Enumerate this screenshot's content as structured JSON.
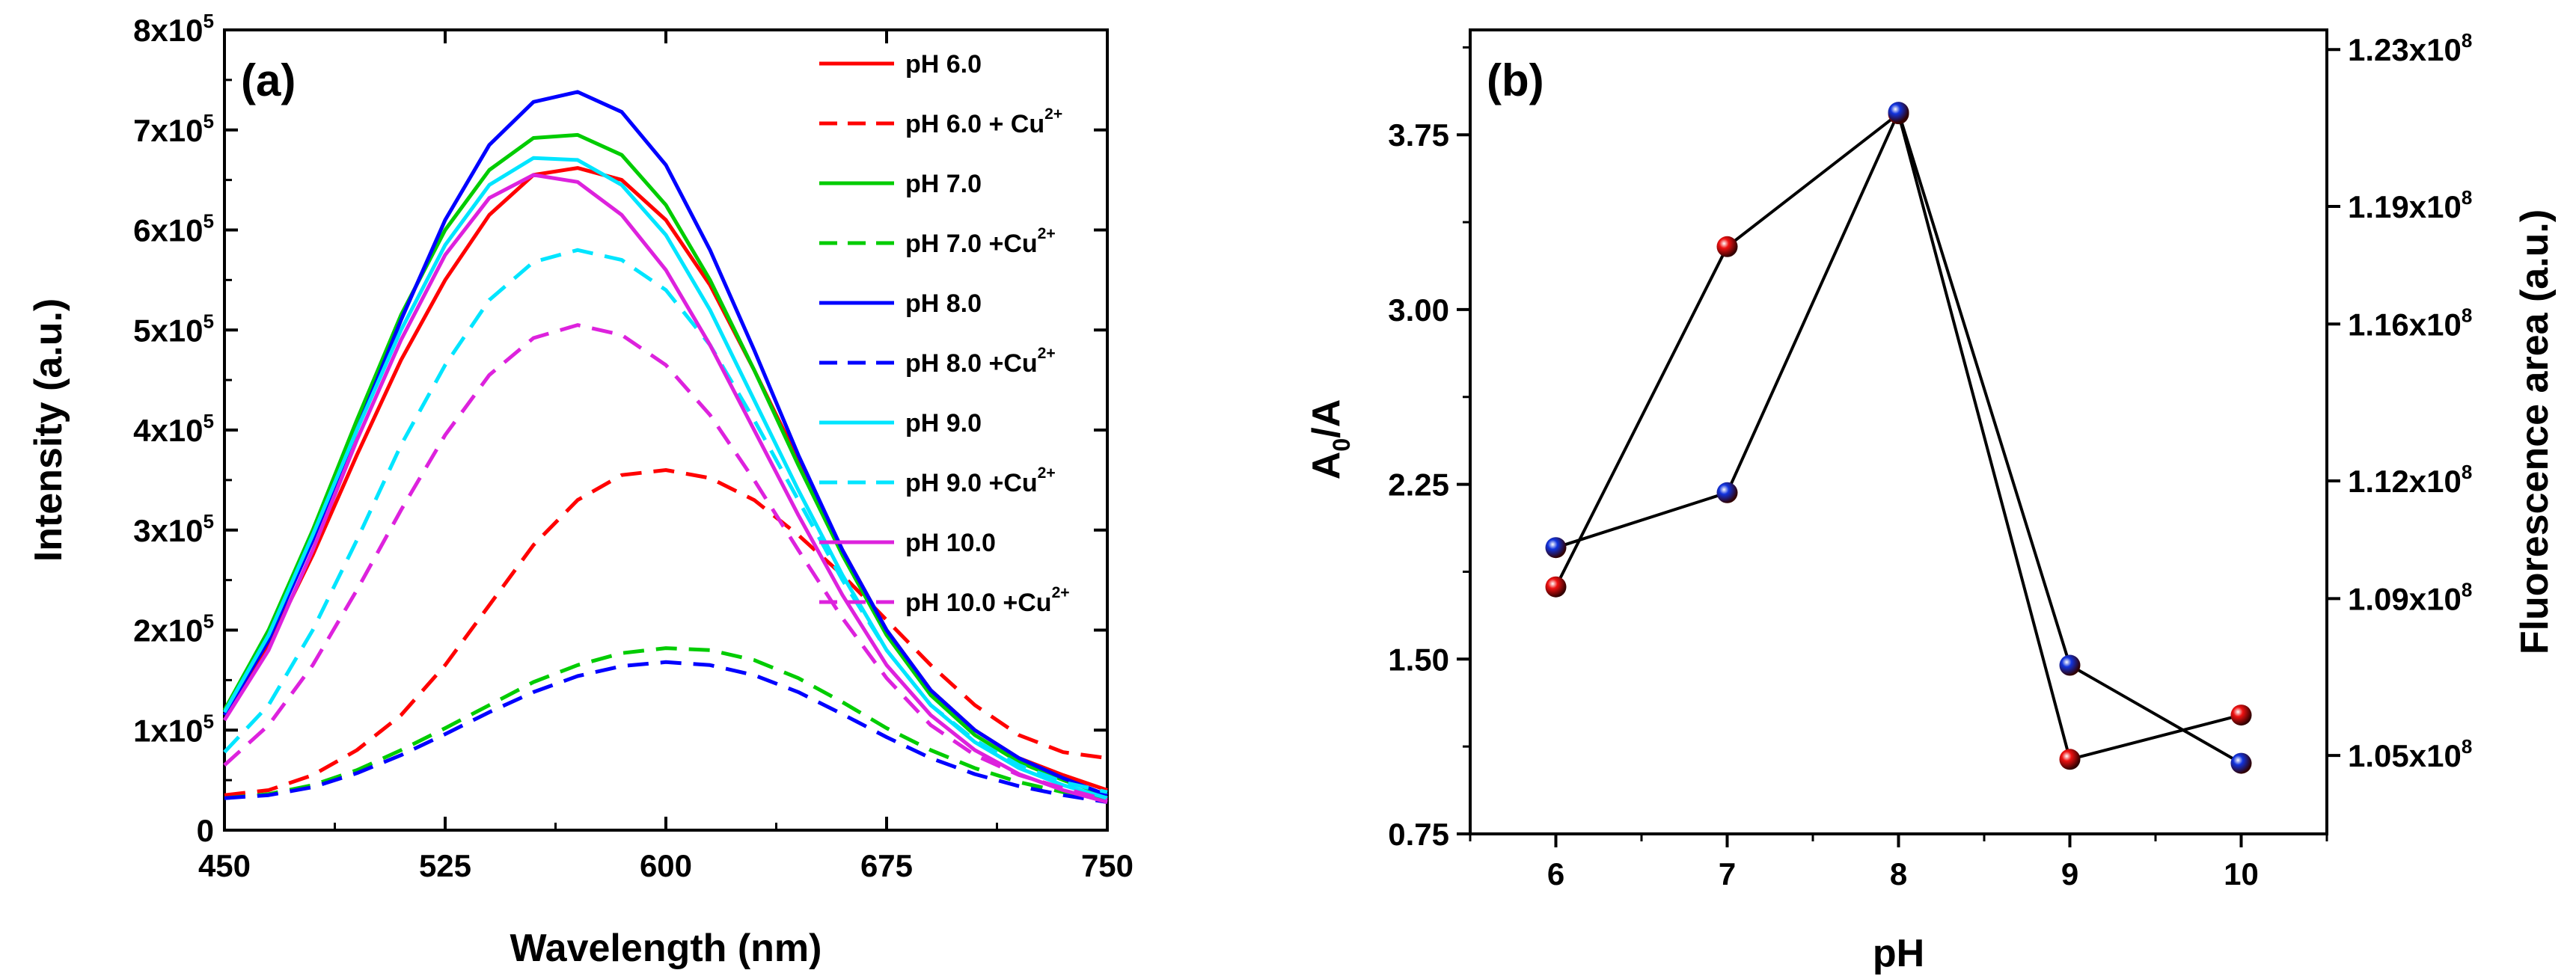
{
  "chart_data": [
    {
      "type": "line",
      "panel_label": "(a)",
      "xlabel": "Wavelength   (nm)",
      "ylabel": "Intensity   (a.u.)",
      "xlim": [
        450,
        750
      ],
      "ylim": [
        0,
        800000
      ],
      "x_ticks": [
        "450",
        "525",
        "600",
        "675",
        "750"
      ],
      "y_ticks": [
        {
          "value": 0,
          "base": "0",
          "exp": ""
        },
        {
          "value": 100000,
          "base": "1x10",
          "exp": "5"
        },
        {
          "value": 200000,
          "base": "2x10",
          "exp": "5"
        },
        {
          "value": 300000,
          "base": "3x10",
          "exp": "5"
        },
        {
          "value": 400000,
          "base": "4x10",
          "exp": "5"
        },
        {
          "value": 500000,
          "base": "5x10",
          "exp": "5"
        },
        {
          "value": 600000,
          "base": "6x10",
          "exp": "5"
        },
        {
          "value": 700000,
          "base": "7x10",
          "exp": "5"
        },
        {
          "value": 800000,
          "base": "8x10",
          "exp": "5"
        }
      ],
      "x": [
        450,
        465,
        480,
        495,
        510,
        525,
        540,
        555,
        570,
        585,
        600,
        615,
        630,
        645,
        660,
        675,
        690,
        705,
        720,
        735,
        750
      ],
      "legend_position": "top-right",
      "series": [
        {
          "name": "pH 6.0",
          "sup": "",
          "color": "#ff0000",
          "style": "solid",
          "values": [
            115000,
            185000,
            275000,
            375000,
            470000,
            550000,
            615000,
            655000,
            662000,
            650000,
            610000,
            545000,
            460000,
            370000,
            280000,
            200000,
            140000,
            100000,
            72000,
            55000,
            40000
          ]
        },
        {
          "name": "pH 6.0 + Cu",
          "sup": "2+",
          "color": "#ff0000",
          "style": "dashed",
          "values": [
            35000,
            40000,
            55000,
            80000,
            115000,
            165000,
            225000,
            285000,
            330000,
            355000,
            360000,
            352000,
            330000,
            295000,
            255000,
            210000,
            165000,
            125000,
            95000,
            78000,
            72000
          ]
        },
        {
          "name": "pH 7.0",
          "sup": "",
          "color": "#00cc00",
          "style": "solid",
          "values": [
            120000,
            200000,
            300000,
            410000,
            515000,
            600000,
            660000,
            692000,
            695000,
            675000,
            625000,
            550000,
            460000,
            365000,
            275000,
            195000,
            135000,
            95000,
            68000,
            50000,
            35000
          ]
        },
        {
          "name": "pH 7.0 +Cu",
          "sup": "2+",
          "color": "#00cc00",
          "style": "dashed",
          "values": [
            32000,
            36000,
            45000,
            60000,
            80000,
            102000,
            125000,
            148000,
            165000,
            177000,
            182000,
            180000,
            170000,
            152000,
            128000,
            102000,
            80000,
            62000,
            48000,
            38000,
            30000
          ]
        },
        {
          "name": "pH 8.0",
          "sup": "",
          "color": "#0000ff",
          "style": "solid",
          "values": [
            115000,
            190000,
            290000,
            400000,
            510000,
            610000,
            685000,
            728000,
            738000,
            718000,
            665000,
            580000,
            480000,
            375000,
            280000,
            200000,
            140000,
            100000,
            72000,
            52000,
            35000
          ]
        },
        {
          "name": "pH 8.0 +Cu",
          "sup": "2+",
          "color": "#0000ff",
          "style": "dashed",
          "values": [
            32000,
            35000,
            43000,
            57000,
            75000,
            96000,
            118000,
            138000,
            154000,
            164000,
            168000,
            165000,
            155000,
            138000,
            116000,
            93000,
            72000,
            56000,
            44000,
            35000,
            28000
          ]
        },
        {
          "name": "pH 9.0",
          "sup": "",
          "color": "#00e5ff",
          "style": "solid",
          "values": [
            118000,
            195000,
            295000,
            400000,
            500000,
            585000,
            645000,
            672000,
            670000,
            645000,
            595000,
            520000,
            430000,
            340000,
            255000,
            180000,
            125000,
            88000,
            62000,
            45000,
            32000
          ]
        },
        {
          "name": "pH 9.0 +Cu",
          "sup": "2+",
          "color": "#00e5ff",
          "style": "dashed",
          "values": [
            78000,
            125000,
            200000,
            290000,
            385000,
            465000,
            530000,
            568000,
            580000,
            570000,
            540000,
            485000,
            410000,
            330000,
            250000,
            180000,
            125000,
            90000,
            65000,
            48000,
            38000
          ]
        },
        {
          "name": "pH 10.0",
          "sup": "",
          "color": "#dd22dd",
          "style": "solid",
          "values": [
            110000,
            180000,
            280000,
            390000,
            490000,
            575000,
            632000,
            655000,
            648000,
            615000,
            560000,
            485000,
            400000,
            315000,
            235000,
            165000,
            115000,
            80000,
            56000,
            40000,
            28000
          ]
        },
        {
          "name": "pH 10.0 +Cu",
          "sup": "2+",
          "color": "#dd22dd",
          "style": "dashed",
          "values": [
            65000,
            105000,
            165000,
            240000,
            320000,
            395000,
            455000,
            492000,
            505000,
            495000,
            465000,
            415000,
            350000,
            280000,
            212000,
            152000,
            105000,
            75000,
            55000,
            42000,
            30000
          ]
        }
      ]
    },
    {
      "type": "scatter",
      "panel_label": "(b)",
      "xlabel": "pH",
      "ylabel_base": "A",
      "ylabel_sub": "0",
      "ylabel_rest": "/A",
      "ylabel_right": "Fluorescence area   (a.u.)",
      "xlim": [
        5.5,
        10.5
      ],
      "ylim": [
        0.75,
        4.2
      ],
      "ylim_right": [
        103000000.0,
        123500000.0
      ],
      "x_ticks": [
        "6",
        "7",
        "8",
        "9",
        "10"
      ],
      "y_ticks": [
        {
          "value": 0.75,
          "label": "0.75"
        },
        {
          "value": 1.5,
          "label": "1.50"
        },
        {
          "value": 2.25,
          "label": "2.25"
        },
        {
          "value": 3.0,
          "label": "3.00"
        },
        {
          "value": 3.75,
          "label": "3.75"
        }
      ],
      "y_ticks_right": [
        {
          "value": 105000000.0,
          "base": "1.05x10",
          "exp": "8"
        },
        {
          "value": 109000000.0,
          "base": "1.09x10",
          "exp": "8"
        },
        {
          "value": 112000000.0,
          "base": "1.12x10",
          "exp": "8"
        },
        {
          "value": 116000000.0,
          "base": "1.16x10",
          "exp": "8"
        },
        {
          "value": 119000000.0,
          "base": "1.19x10",
          "exp": "8"
        },
        {
          "value": 123000000.0,
          "base": "1.23x10",
          "exp": "8"
        }
      ],
      "series": [
        {
          "axis": "left",
          "color": "#ee1111",
          "x": [
            6,
            7,
            8,
            9,
            10
          ],
          "y": [
            1.81,
            3.27,
            3.84,
            1.07,
            1.26
          ]
        },
        {
          "axis": "right",
          "color": "#1133dd",
          "x": [
            6,
            7,
            8,
            9,
            10
          ],
          "y": [
            110300000.0,
            111700000.0,
            121400000.0,
            107300000.0,
            104800000.0
          ]
        }
      ]
    }
  ]
}
